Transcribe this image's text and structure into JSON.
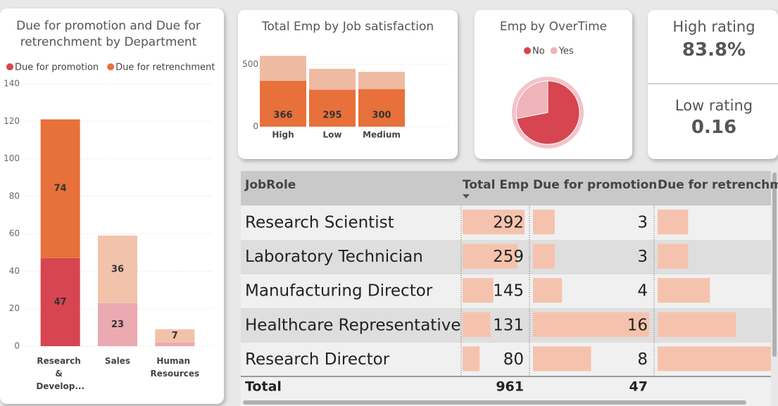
{
  "chart_data": [
    {
      "type": "stacked-bar",
      "title": "Due for promotion and Due for retrenchment by Department",
      "categories": [
        "Research & Develop...",
        "Sales",
        "Human Resources"
      ],
      "series": [
        {
          "name": "Due for promotion",
          "color": "#d64550",
          "colors": [
            "#d64550",
            "#eba9b1",
            "#eba9b1"
          ],
          "values": [
            47,
            23,
            2
          ]
        },
        {
          "name": "Due for retrenchment",
          "color": "#e8703a",
          "colors": [
            "#e8703a",
            "#f2c2aa",
            "#f2c2aa"
          ],
          "values": [
            74,
            36,
            7
          ]
        }
      ],
      "ylim": [
        0,
        140
      ],
      "yticks": [
        0,
        20,
        40,
        60,
        80,
        100,
        120,
        140
      ],
      "grid": true,
      "legend": "top"
    },
    {
      "type": "overlap-bar",
      "title": "Total Emp by Job satisfaction",
      "categories": [
        "High",
        "Low",
        "Medium"
      ],
      "series": [
        {
          "color": "#eebaa2",
          "values": [
            567,
            463,
            439
          ]
        },
        {
          "color": "#e8703a",
          "values": [
            366,
            295,
            300
          ]
        }
      ],
      "ylim": [
        0,
        620
      ],
      "yticks": [
        0,
        500
      ],
      "grid": true
    },
    {
      "type": "pie",
      "title": "Emp by OverTime",
      "categories": [
        "No",
        "Yes"
      ],
      "values": [
        72,
        28
      ],
      "colors": [
        "#d64550",
        "#f0b3ba"
      ],
      "legend": "top"
    }
  ],
  "cards": [
    {
      "label": "High rating",
      "value": "83.8%"
    },
    {
      "label": "Low rating",
      "value": "0.16"
    }
  ],
  "table": {
    "columns": [
      "JobRole",
      "Total Emp",
      "Due for promotion",
      "Due for retrenchm"
    ],
    "rows": [
      [
        "Research Scientist",
        292,
        3
      ],
      [
        "Laboratory Technician",
        259,
        3
      ],
      [
        "Manufacturing Director",
        145,
        4
      ],
      [
        "Healthcare Representative",
        131,
        16
      ],
      [
        "Research Director",
        80,
        8
      ]
    ],
    "retrenchment_bars": [
      7,
      7,
      12,
      18,
      26
    ],
    "total": [
      "Total",
      961,
      47
    ]
  }
}
